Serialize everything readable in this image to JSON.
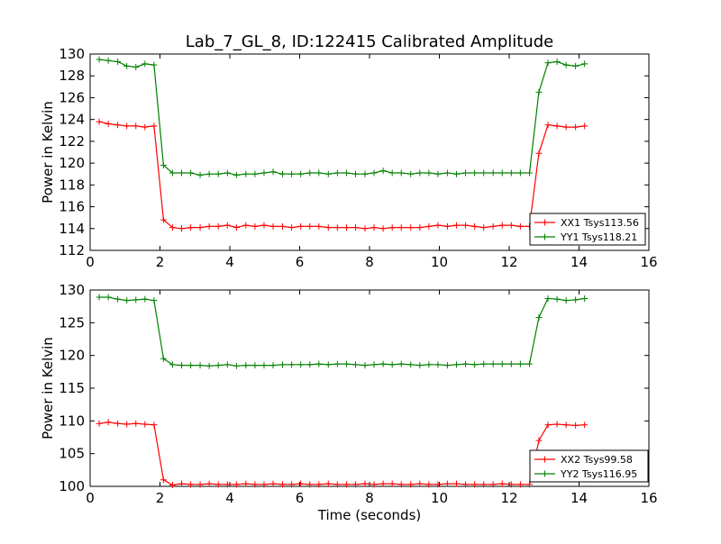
{
  "title": "Lab_7_GL_8, ID:122415 Calibrated Amplitude",
  "chart_data": [
    {
      "type": "line",
      "title": "Lab_7_GL_8, ID:122415 Calibrated Amplitude",
      "xlabel": "",
      "ylabel": "Power in Kelvin",
      "xlim": [
        0,
        16
      ],
      "ylim": [
        112,
        130
      ],
      "xticks": [
        0,
        2,
        4,
        6,
        8,
        10,
        12,
        14,
        16
      ],
      "yticks": [
        112,
        114,
        116,
        118,
        120,
        122,
        124,
        126,
        128,
        130
      ],
      "grid": false,
      "legend_position": "lower-right",
      "x": [
        0.26,
        0.52,
        0.79,
        1.05,
        1.31,
        1.57,
        1.83,
        2.1,
        2.36,
        2.62,
        2.88,
        3.15,
        3.41,
        3.67,
        3.93,
        4.19,
        4.46,
        4.72,
        4.98,
        5.24,
        5.51,
        5.77,
        6.03,
        6.29,
        6.55,
        6.82,
        7.08,
        7.34,
        7.6,
        7.87,
        8.13,
        8.39,
        8.65,
        8.91,
        9.18,
        9.44,
        9.7,
        9.96,
        10.23,
        10.49,
        10.75,
        11.01,
        11.27,
        11.54,
        11.8,
        12.06,
        12.32,
        12.58,
        12.85,
        13.11,
        13.37,
        13.63,
        13.9,
        14.16
      ],
      "series": [
        {
          "name": "XX1 Tsys113.56",
          "color": "#ff0000",
          "values": [
            123.8,
            123.6,
            123.5,
            123.4,
            123.4,
            123.3,
            123.4,
            114.8,
            114.1,
            114.0,
            114.1,
            114.1,
            114.2,
            114.2,
            114.3,
            114.1,
            114.3,
            114.2,
            114.3,
            114.2,
            114.2,
            114.1,
            114.2,
            114.2,
            114.2,
            114.1,
            114.1,
            114.1,
            114.1,
            114.0,
            114.1,
            114.0,
            114.1,
            114.1,
            114.1,
            114.1,
            114.2,
            114.3,
            114.2,
            114.3,
            114.3,
            114.2,
            114.1,
            114.2,
            114.3,
            114.3,
            114.2,
            114.2,
            120.9,
            123.5,
            123.4,
            123.3,
            123.3,
            123.4
          ]
        },
        {
          "name": "YY1 Tsys118.21",
          "color": "#008000",
          "values": [
            129.5,
            129.4,
            129.3,
            128.9,
            128.8,
            129.1,
            129.0,
            119.8,
            119.1,
            119.1,
            119.1,
            118.9,
            119.0,
            119.0,
            119.1,
            118.9,
            119.0,
            119.0,
            119.1,
            119.2,
            119.0,
            119.0,
            119.0,
            119.1,
            119.1,
            119.0,
            119.1,
            119.1,
            119.0,
            119.0,
            119.1,
            119.3,
            119.1,
            119.1,
            119.0,
            119.1,
            119.1,
            119.0,
            119.1,
            119.0,
            119.1,
            119.1,
            119.1,
            119.1,
            119.1,
            119.1,
            119.1,
            119.1,
            126.5,
            129.2,
            129.3,
            129.0,
            128.9,
            129.1
          ]
        }
      ]
    },
    {
      "type": "line",
      "title": "",
      "xlabel": "Time (seconds)",
      "ylabel": "Power in Kelvin",
      "xlim": [
        0,
        16
      ],
      "ylim": [
        100,
        130
      ],
      "xticks": [
        0,
        2,
        4,
        6,
        8,
        10,
        12,
        14,
        16
      ],
      "yticks": [
        100,
        105,
        110,
        115,
        120,
        125,
        130
      ],
      "grid": false,
      "legend_position": "lower-right",
      "x": [
        0.26,
        0.52,
        0.79,
        1.05,
        1.31,
        1.57,
        1.83,
        2.1,
        2.36,
        2.62,
        2.88,
        3.15,
        3.41,
        3.67,
        3.93,
        4.19,
        4.46,
        4.72,
        4.98,
        5.24,
        5.51,
        5.77,
        6.03,
        6.29,
        6.55,
        6.82,
        7.08,
        7.34,
        7.6,
        7.87,
        8.13,
        8.39,
        8.65,
        8.91,
        9.18,
        9.44,
        9.7,
        9.96,
        10.23,
        10.49,
        10.75,
        11.01,
        11.27,
        11.54,
        11.8,
        12.06,
        12.32,
        12.58,
        12.85,
        13.11,
        13.37,
        13.63,
        13.9,
        14.16
      ],
      "series": [
        {
          "name": "XX2 Tsys99.58",
          "color": "#ff0000",
          "values": [
            109.6,
            109.8,
            109.6,
            109.5,
            109.6,
            109.5,
            109.4,
            101.0,
            100.2,
            100.4,
            100.3,
            100.3,
            100.4,
            100.3,
            100.3,
            100.3,
            100.4,
            100.3,
            100.3,
            100.4,
            100.3,
            100.3,
            100.4,
            100.3,
            100.3,
            100.4,
            100.3,
            100.3,
            100.3,
            100.4,
            100.3,
            100.4,
            100.4,
            100.3,
            100.3,
            100.4,
            100.3,
            100.3,
            100.4,
            100.4,
            100.3,
            100.3,
            100.3,
            100.3,
            100.4,
            100.3,
            100.3,
            100.3,
            107.0,
            109.4,
            109.5,
            109.4,
            109.3,
            109.4
          ]
        },
        {
          "name": "YY2 Tsys116.95",
          "color": "#008000",
          "values": [
            128.9,
            128.9,
            128.6,
            128.4,
            128.5,
            128.6,
            128.4,
            119.5,
            118.6,
            118.5,
            118.5,
            118.5,
            118.4,
            118.5,
            118.6,
            118.4,
            118.5,
            118.5,
            118.5,
            118.5,
            118.6,
            118.6,
            118.6,
            118.6,
            118.7,
            118.6,
            118.7,
            118.7,
            118.6,
            118.5,
            118.6,
            118.7,
            118.6,
            118.7,
            118.6,
            118.5,
            118.6,
            118.6,
            118.5,
            118.6,
            118.7,
            118.6,
            118.7,
            118.7,
            118.7,
            118.7,
            118.7,
            118.7,
            125.8,
            128.7,
            128.6,
            128.4,
            128.5,
            128.7
          ]
        }
      ]
    }
  ]
}
